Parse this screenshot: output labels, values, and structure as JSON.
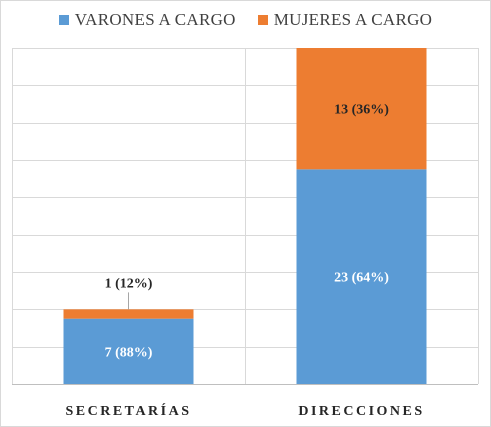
{
  "chart_data": {
    "type": "bar",
    "stacked": true,
    "categories": [
      "SECRETARÍAS",
      "DIRECCIONES"
    ],
    "series": [
      {
        "name": "VARONES A CARGO",
        "values": [
          7,
          23
        ],
        "labels": [
          "7 (88%)",
          "23 (64%)"
        ],
        "color": "#5b9bd5"
      },
      {
        "name": "MUJERES A CARGO",
        "values": [
          1,
          13
        ],
        "labels": [
          "1 (12%)",
          "13 (36%)"
        ],
        "color": "#ed7d31"
      }
    ],
    "ylim": [
      0,
      36
    ],
    "grid": true,
    "legend_position": "top"
  }
}
